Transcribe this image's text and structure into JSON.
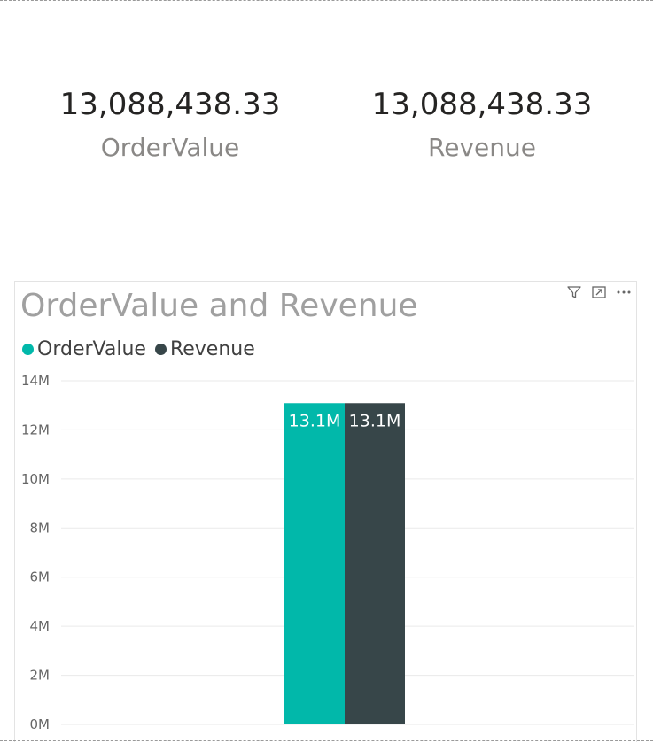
{
  "cards": [
    {
      "value": "13,088,438.33",
      "label": "OrderValue"
    },
    {
      "value": "13,088,438.33",
      "label": "Revenue"
    }
  ],
  "visual": {
    "icons": [
      "filter-icon",
      "focus-mode-icon",
      "more-options-icon"
    ]
  },
  "colors": {
    "series1": "#01B8AA",
    "series2": "#374649",
    "gridline": "#eaeaea",
    "title": "#a0a0a0"
  },
  "chart_data": {
    "type": "bar",
    "title": "OrderValue and Revenue",
    "xlabel": "",
    "ylabel": "",
    "categories": [
      ""
    ],
    "series": [
      {
        "name": "OrderValue",
        "values": [
          13088438.33
        ],
        "label": "13.1M",
        "color": "#01B8AA"
      },
      {
        "name": "Revenue",
        "values": [
          13088438.33
        ],
        "label": "13.1M",
        "color": "#374649"
      }
    ],
    "ylim": [
      0,
      14000000
    ],
    "yticks": [
      0,
      2000000,
      4000000,
      6000000,
      8000000,
      10000000,
      12000000,
      14000000
    ],
    "ytick_labels": [
      "0M",
      "2M",
      "4M",
      "6M",
      "8M",
      "10M",
      "12M",
      "14M"
    ],
    "grid": true,
    "legend": "top-left"
  }
}
